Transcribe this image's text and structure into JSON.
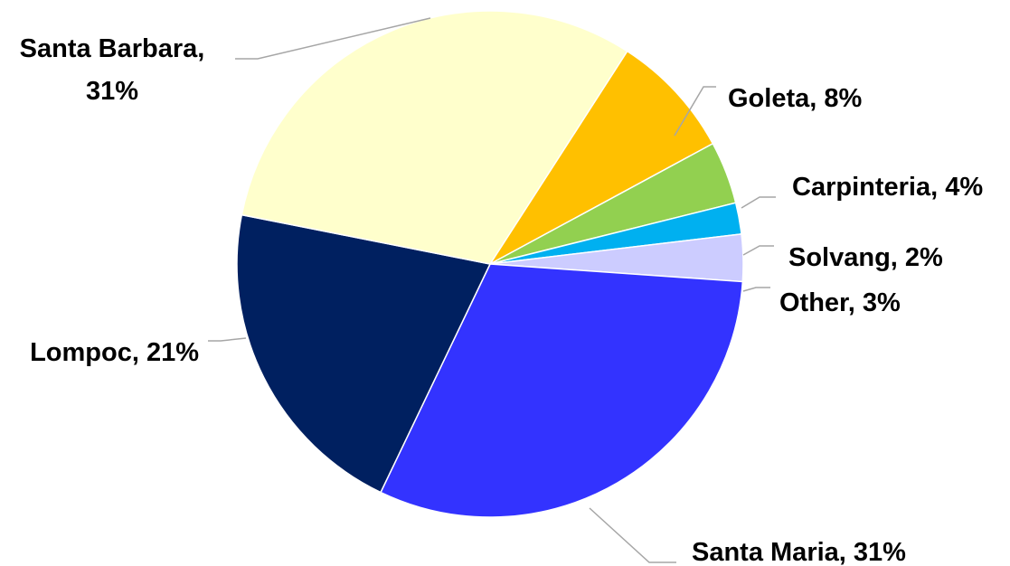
{
  "chart_data": {
    "type": "pie",
    "title": "",
    "start_angle_deg": -57.2,
    "direction": "clockwise",
    "slices": [
      {
        "label": "Goleta",
        "value": 8,
        "color": "#FFC000",
        "label_text": "Goleta, 8%"
      },
      {
        "label": "Carpinteria",
        "value": 4,
        "color": "#92D050",
        "label_text": "Carpinteria, 4%"
      },
      {
        "label": "Solvang",
        "value": 2,
        "color": "#00B0F0",
        "label_text": "Solvang, 2%"
      },
      {
        "label": "Other",
        "value": 3,
        "color": "#CCCCFF",
        "label_text": "Other, 3%"
      },
      {
        "label": "Santa Maria",
        "value": 31,
        "color": "#3333FF",
        "label_text": "Santa Maria, 31%"
      },
      {
        "label": "Lompoc",
        "value": 21,
        "color": "#002060",
        "label_text": "Lompoc, 21%"
      },
      {
        "label": "Santa Barbara",
        "value": 31,
        "color": "#FFFFCC",
        "label_text": "Santa Barbara, 31%"
      }
    ],
    "legend": "none",
    "labels": "outside with leader lines"
  }
}
